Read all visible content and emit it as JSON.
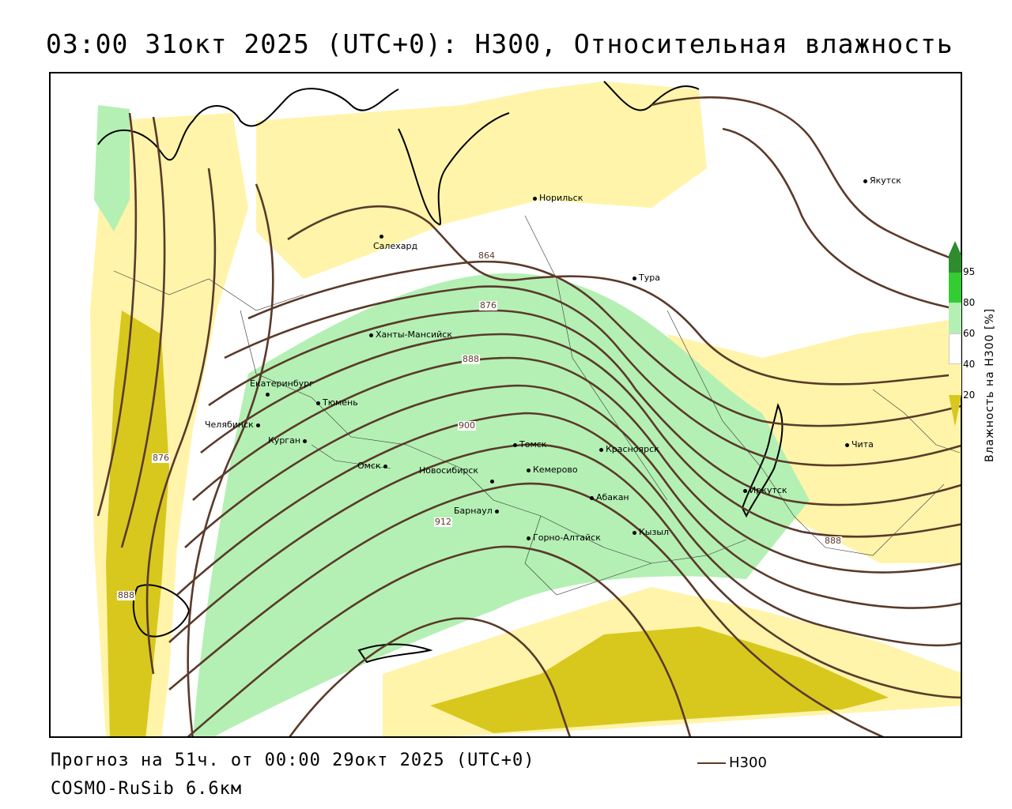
{
  "title": "03:00 31окт 2025 (UTC+0): H300, Относительная влажность",
  "footer": {
    "forecast": "Прогноз на 51ч. от 00:00 29окт 2025 (UTC+0)",
    "model": "COSMO-RuSib 6.6км"
  },
  "series_key": {
    "label": "H300",
    "color": "#5a3a2a"
  },
  "legend": {
    "title": "Влажность на H300 [%]",
    "ticks": [
      "95",
      "80",
      "60",
      "40",
      "20"
    ],
    "colors": {
      "rh_gt95": "#2e8b2e",
      "rh_80_95": "#33cc33",
      "rh_60_80": "#b4f0b4",
      "rh_40_60": "#ffffff",
      "rh_20_40": "#fff4aa",
      "rh_lt20": "#d8c81e"
    }
  },
  "contour_labels": [
    "864",
    "876",
    "888",
    "900",
    "912",
    "876",
    "888",
    "888"
  ],
  "cities": [
    {
      "name": "Якутск"
    },
    {
      "name": "Норильск"
    },
    {
      "name": "Салехард"
    },
    {
      "name": "Тура"
    },
    {
      "name": "Ханты-Мансийск"
    },
    {
      "name": "Екатеринбург"
    },
    {
      "name": "Тюмень"
    },
    {
      "name": "Челябинск"
    },
    {
      "name": "Курган"
    },
    {
      "name": "Омск"
    },
    {
      "name": "Новосибирск"
    },
    {
      "name": "Томск"
    },
    {
      "name": "Кемерово"
    },
    {
      "name": "Красноярск"
    },
    {
      "name": "Абакан"
    },
    {
      "name": "Барнаул"
    },
    {
      "name": "Горно-Алтайск"
    },
    {
      "name": "Кызыл"
    },
    {
      "name": "Иркутск"
    },
    {
      "name": "Чита"
    }
  ]
}
